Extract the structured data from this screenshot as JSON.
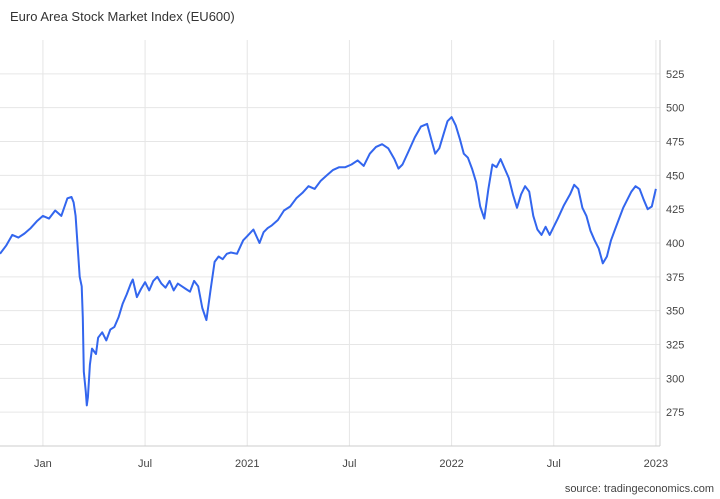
{
  "chart_data": {
    "type": "line",
    "title": "Euro Area Stock Market Index (EU600)",
    "source": "source: tradingeconomics.com",
    "color": "#3366ee",
    "grid": true,
    "ylim": [
      250,
      550
    ],
    "y_ticks": [
      275,
      300,
      325,
      350,
      375,
      400,
      425,
      450,
      475,
      500,
      525
    ],
    "x_ticks": [
      {
        "t": 2020.0,
        "label": "Jan"
      },
      {
        "t": 2020.5,
        "label": "Jul"
      },
      {
        "t": 2021.0,
        "label": "2021"
      },
      {
        "t": 2021.5,
        "label": "Jul"
      },
      {
        "t": 2022.0,
        "label": "2022"
      },
      {
        "t": 2022.5,
        "label": "Jul"
      },
      {
        "t": 2023.0,
        "label": "2023"
      }
    ],
    "xlim": [
      2019.79,
      2023.02
    ],
    "series": [
      {
        "points": [
          [
            2019.79,
            392
          ],
          [
            2019.82,
            398
          ],
          [
            2019.85,
            406
          ],
          [
            2019.88,
            404
          ],
          [
            2019.91,
            407
          ],
          [
            2019.94,
            411
          ],
          [
            2019.97,
            416
          ],
          [
            2020.0,
            420
          ],
          [
            2020.03,
            418
          ],
          [
            2020.06,
            424
          ],
          [
            2020.09,
            420
          ],
          [
            2020.12,
            433
          ],
          [
            2020.14,
            434
          ],
          [
            2020.15,
            430
          ],
          [
            2020.16,
            420
          ],
          [
            2020.17,
            398
          ],
          [
            2020.18,
            375
          ],
          [
            2020.19,
            368
          ],
          [
            2020.195,
            345
          ],
          [
            2020.2,
            305
          ],
          [
            2020.21,
            290
          ],
          [
            2020.215,
            280
          ],
          [
            2020.22,
            286
          ],
          [
            2020.23,
            310
          ],
          [
            2020.24,
            322
          ],
          [
            2020.26,
            318
          ],
          [
            2020.27,
            330
          ],
          [
            2020.29,
            334
          ],
          [
            2020.31,
            328
          ],
          [
            2020.33,
            336
          ],
          [
            2020.35,
            338
          ],
          [
            2020.37,
            345
          ],
          [
            2020.39,
            355
          ],
          [
            2020.41,
            362
          ],
          [
            2020.43,
            370
          ],
          [
            2020.44,
            373
          ],
          [
            2020.46,
            360
          ],
          [
            2020.48,
            366
          ],
          [
            2020.5,
            371
          ],
          [
            2020.52,
            365
          ],
          [
            2020.54,
            372
          ],
          [
            2020.56,
            375
          ],
          [
            2020.58,
            370
          ],
          [
            2020.6,
            367
          ],
          [
            2020.62,
            372
          ],
          [
            2020.64,
            365
          ],
          [
            2020.66,
            370
          ],
          [
            2020.68,
            368
          ],
          [
            2020.7,
            366
          ],
          [
            2020.72,
            364
          ],
          [
            2020.74,
            372
          ],
          [
            2020.76,
            368
          ],
          [
            2020.78,
            352
          ],
          [
            2020.8,
            343
          ],
          [
            2020.82,
            365
          ],
          [
            2020.84,
            386
          ],
          [
            2020.86,
            390
          ],
          [
            2020.88,
            388
          ],
          [
            2020.9,
            392
          ],
          [
            2020.92,
            393
          ],
          [
            2020.95,
            392
          ],
          [
            2020.98,
            402
          ],
          [
            2021.0,
            405
          ],
          [
            2021.03,
            410
          ],
          [
            2021.06,
            400
          ],
          [
            2021.08,
            408
          ],
          [
            2021.1,
            411
          ],
          [
            2021.12,
            413
          ],
          [
            2021.15,
            417
          ],
          [
            2021.18,
            424
          ],
          [
            2021.21,
            427
          ],
          [
            2021.24,
            433
          ],
          [
            2021.27,
            437
          ],
          [
            2021.3,
            442
          ],
          [
            2021.33,
            440
          ],
          [
            2021.36,
            446
          ],
          [
            2021.39,
            450
          ],
          [
            2021.42,
            454
          ],
          [
            2021.45,
            456
          ],
          [
            2021.48,
            456
          ],
          [
            2021.51,
            458
          ],
          [
            2021.54,
            461
          ],
          [
            2021.57,
            457
          ],
          [
            2021.6,
            466
          ],
          [
            2021.63,
            471
          ],
          [
            2021.66,
            473
          ],
          [
            2021.69,
            470
          ],
          [
            2021.72,
            462
          ],
          [
            2021.74,
            455
          ],
          [
            2021.76,
            458
          ],
          [
            2021.79,
            468
          ],
          [
            2021.82,
            478
          ],
          [
            2021.85,
            486
          ],
          [
            2021.88,
            488
          ],
          [
            2021.9,
            477
          ],
          [
            2021.92,
            466
          ],
          [
            2021.94,
            470
          ],
          [
            2021.96,
            480
          ],
          [
            2021.98,
            490
          ],
          [
            2022.0,
            493
          ],
          [
            2022.02,
            487
          ],
          [
            2022.04,
            477
          ],
          [
            2022.06,
            466
          ],
          [
            2022.08,
            463
          ],
          [
            2022.1,
            455
          ],
          [
            2022.12,
            445
          ],
          [
            2022.14,
            427
          ],
          [
            2022.16,
            418
          ],
          [
            2022.18,
            440
          ],
          [
            2022.2,
            458
          ],
          [
            2022.22,
            456
          ],
          [
            2022.24,
            462
          ],
          [
            2022.26,
            455
          ],
          [
            2022.28,
            448
          ],
          [
            2022.3,
            436
          ],
          [
            2022.32,
            426
          ],
          [
            2022.34,
            436
          ],
          [
            2022.36,
            442
          ],
          [
            2022.38,
            438
          ],
          [
            2022.4,
            420
          ],
          [
            2022.42,
            410
          ],
          [
            2022.44,
            406
          ],
          [
            2022.46,
            412
          ],
          [
            2022.48,
            406
          ],
          [
            2022.5,
            412
          ],
          [
            2022.52,
            418
          ],
          [
            2022.55,
            428
          ],
          [
            2022.58,
            436
          ],
          [
            2022.6,
            443
          ],
          [
            2022.62,
            440
          ],
          [
            2022.64,
            426
          ],
          [
            2022.66,
            420
          ],
          [
            2022.68,
            409
          ],
          [
            2022.7,
            402
          ],
          [
            2022.72,
            396
          ],
          [
            2022.74,
            385
          ],
          [
            2022.76,
            390
          ],
          [
            2022.78,
            402
          ],
          [
            2022.8,
            410
          ],
          [
            2022.82,
            418
          ],
          [
            2022.84,
            426
          ],
          [
            2022.86,
            432
          ],
          [
            2022.88,
            438
          ],
          [
            2022.9,
            442
          ],
          [
            2022.92,
            440
          ],
          [
            2022.94,
            432
          ],
          [
            2022.96,
            425
          ],
          [
            2022.98,
            427
          ],
          [
            2023.0,
            440
          ]
        ]
      }
    ]
  }
}
